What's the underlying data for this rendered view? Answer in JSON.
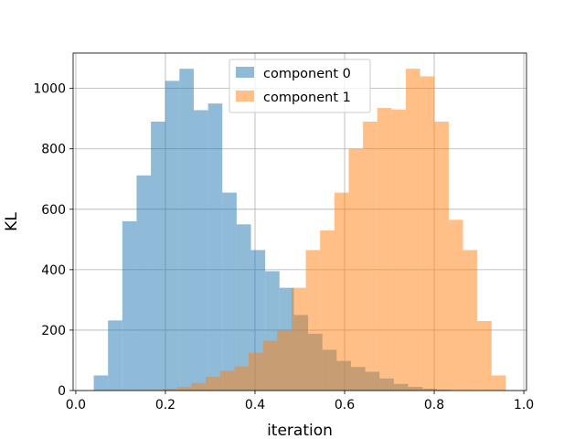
{
  "chart_data": {
    "type": "histogram",
    "title": "",
    "xlabel": "iteration",
    "ylabel": "KL",
    "xlim": [
      -0.006,
      1.006
    ],
    "ylim": [
      0,
      1117
    ],
    "xticks": [
      "0.0",
      "0.2",
      "0.4",
      "0.6",
      "0.8",
      "1.0"
    ],
    "yticks": [
      "0",
      "200",
      "400",
      "600",
      "800",
      "1000"
    ],
    "grid": true,
    "legend_position": "upper center",
    "series": [
      {
        "name": "component 0",
        "color": "#1f77b4",
        "alpha": 0.5,
        "bin_edges": [
          0.04,
          0.0719,
          0.1038,
          0.1357,
          0.1676,
          0.1995,
          0.2314,
          0.2633,
          0.2952,
          0.3271,
          0.359,
          0.3909,
          0.4228,
          0.4547,
          0.4866,
          0.5185,
          0.5504,
          0.5823,
          0.6142,
          0.6461,
          0.678,
          0.7099,
          0.7418,
          0.7737,
          0.8056,
          0.8375,
          0.8694,
          0.9013,
          0.9332,
          0.9651,
          0.997
        ],
        "counts": [
          50,
          232,
          560,
          712,
          890,
          1025,
          1065,
          928,
          950,
          655,
          550,
          465,
          395,
          340,
          250,
          188,
          135,
          98,
          78,
          62,
          40,
          22,
          12,
          6,
          3,
          1,
          0,
          0,
          0,
          0
        ]
      },
      {
        "name": "component 1",
        "color": "#ff7f0e",
        "alpha": 0.5,
        "bin_edges": [
          0.003,
          0.0349,
          0.0668,
          0.0987,
          0.1306,
          0.1625,
          0.1944,
          0.2263,
          0.2582,
          0.2901,
          0.322,
          0.3539,
          0.3858,
          0.4177,
          0.4496,
          0.4815,
          0.5134,
          0.5453,
          0.5772,
          0.6091,
          0.641,
          0.6729,
          0.7048,
          0.7367,
          0.7686,
          0.8005,
          0.8324,
          0.8643,
          0.8962,
          0.9281,
          0.96
        ],
        "counts": [
          0,
          0,
          0,
          0,
          0,
          2,
          6,
          12,
          25,
          45,
          65,
          80,
          125,
          165,
          200,
          340,
          465,
          530,
          655,
          800,
          890,
          935,
          930,
          1065,
          1040,
          890,
          565,
          465,
          230,
          50
        ]
      }
    ]
  }
}
